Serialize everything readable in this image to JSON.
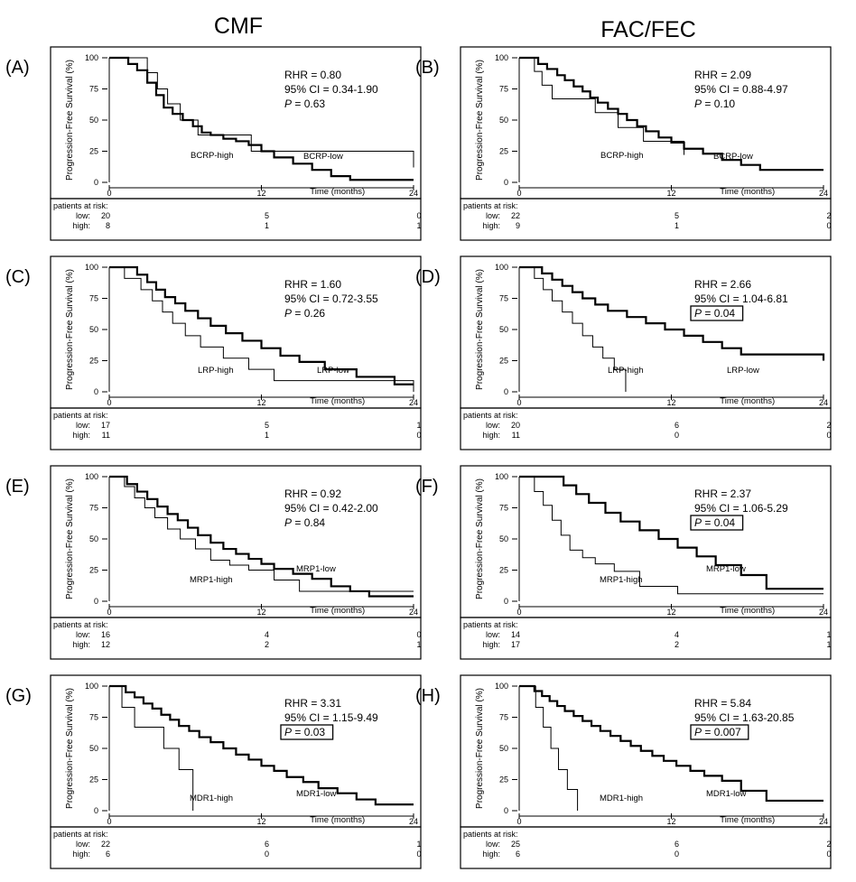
{
  "columns": [
    "CMF",
    "FAC/FEC"
  ],
  "axis": {
    "ylabel": "Progression-Free Survival (%)",
    "xlabel": "Time (months)",
    "y_ticks": [
      "100",
      "75",
      "50",
      "25",
      "0"
    ],
    "x_ticks": [
      "0",
      "12",
      "24"
    ]
  },
  "risk_header": "patients at risk:",
  "risk_low_label": "low:",
  "risk_high_label": "high:",
  "colors": {
    "line": "#000000",
    "background": "#ffffff"
  },
  "chart_data": [
    {
      "type": "line",
      "panel": "(A)",
      "column": "CMF",
      "xlim": [
        0,
        24
      ],
      "ylim": [
        0,
        100
      ],
      "grid": false,
      "stats": {
        "rhr": "RHR = 0.80",
        "ci": "95% CI = 0.34-1.90",
        "p": "P = 0.63",
        "p_boxed": false
      },
      "risk": {
        "low": [
          "20",
          "5",
          "0"
        ],
        "high": [
          "8",
          "1",
          "1"
        ]
      },
      "series": [
        {
          "name": "BCRP-low",
          "style": "thick",
          "label": "BCRP-low",
          "x": [
            0,
            1.5,
            2.2,
            3,
            3.7,
            4.3,
            5,
            5.8,
            6.6,
            7.3,
            8,
            9,
            10,
            11,
            12,
            13,
            14.5,
            16,
            17.5,
            19,
            20.5
          ],
          "y": [
            100,
            95,
            90,
            80,
            70,
            60,
            55,
            50,
            45,
            40,
            38,
            35,
            33,
            30,
            25,
            20,
            15,
            10,
            5,
            2,
            2
          ]
        },
        {
          "name": "BCRP-high",
          "style": "thin",
          "label": "BCRP-high",
          "x": [
            0,
            3,
            3.8,
            4.6,
            5.6,
            7,
            11.2,
            24
          ],
          "y": [
            100,
            88,
            75,
            63,
            50,
            38,
            25,
            12
          ]
        }
      ]
    },
    {
      "type": "line",
      "panel": "(B)",
      "column": "FAC/FEC",
      "xlim": [
        0,
        24
      ],
      "ylim": [
        0,
        100
      ],
      "grid": false,
      "stats": {
        "rhr": "RHR = 2.09",
        "ci": "95% CI = 0.88-4.97",
        "p": "P = 0.10",
        "p_boxed": false
      },
      "risk": {
        "low": [
          "22",
          "5",
          "2"
        ],
        "high": [
          "9",
          "1",
          "0"
        ]
      },
      "series": [
        {
          "name": "BCRP-low",
          "style": "thick",
          "label": "BCRP-low",
          "x": [
            0,
            1.5,
            2.2,
            3,
            3.6,
            4.3,
            5,
            5.6,
            6.2,
            7,
            7.8,
            8.5,
            9.3,
            10,
            11,
            12,
            13,
            14.5,
            16,
            17.5,
            19,
            24
          ],
          "y": [
            100,
            95,
            91,
            86,
            82,
            77,
            73,
            68,
            64,
            59,
            55,
            50,
            45,
            41,
            36,
            32,
            27,
            23,
            18,
            14,
            10,
            10
          ]
        },
        {
          "name": "BCRP-high",
          "style": "thin",
          "label": "BCRP-high",
          "x": [
            0,
            1.2,
            1.8,
            2.6,
            6,
            7.8,
            9.8,
            13
          ],
          "y": [
            100,
            89,
            78,
            67,
            56,
            44,
            33,
            22
          ]
        }
      ]
    },
    {
      "type": "line",
      "panel": "(C)",
      "column": "CMF",
      "xlim": [
        0,
        24
      ],
      "ylim": [
        0,
        100
      ],
      "grid": false,
      "stats": {
        "rhr": "RHR = 1.60",
        "ci": "95% CI = 0.72-3.55",
        "p": "P = 0.26",
        "p_boxed": false
      },
      "risk": {
        "low": [
          "17",
          "5",
          "1"
        ],
        "high": [
          "11",
          "1",
          "0"
        ]
      },
      "series": [
        {
          "name": "LRP-low",
          "style": "thick",
          "label": "LRP-low",
          "x": [
            0,
            2.2,
            3,
            3.7,
            4.4,
            5.2,
            6,
            7,
            8,
            9.2,
            10.5,
            12,
            13.5,
            15,
            17,
            19.5,
            22.5
          ],
          "y": [
            100,
            94,
            88,
            82,
            76,
            71,
            65,
            59,
            53,
            47,
            41,
            35,
            29,
            24,
            18,
            12,
            6
          ]
        },
        {
          "name": "LRP-high",
          "style": "thin",
          "label": "LRP-high",
          "x": [
            0,
            1.2,
            2.5,
            3.4,
            4.2,
            5,
            6,
            7.2,
            9,
            11,
            13,
            14.5,
            24
          ],
          "y": [
            100,
            91,
            82,
            73,
            64,
            55,
            45,
            36,
            27,
            18,
            9,
            9,
            0
          ]
        }
      ]
    },
    {
      "type": "line",
      "panel": "(D)",
      "column": "FAC/FEC",
      "xlim": [
        0,
        24
      ],
      "ylim": [
        0,
        100
      ],
      "grid": false,
      "stats": {
        "rhr": "RHR = 2.66",
        "ci": "95% CI = 1.04-6.81",
        "p": "P = 0.04",
        "p_boxed": true
      },
      "risk": {
        "low": [
          "20",
          "6",
          "2"
        ],
        "high": [
          "11",
          "0",
          "0"
        ]
      },
      "series": [
        {
          "name": "LRP-low",
          "style": "thick",
          "label": "LRP-low",
          "x": [
            0,
            1.8,
            2.6,
            3.4,
            4.2,
            5,
            6,
            7,
            8.5,
            10,
            11.5,
            13,
            14.5,
            16,
            17.5,
            24
          ],
          "y": [
            100,
            95,
            90,
            85,
            80,
            75,
            70,
            65,
            60,
            55,
            50,
            45,
            40,
            35,
            30,
            25
          ]
        },
        {
          "name": "LRP-high",
          "style": "thin",
          "label": "LRP-high",
          "x": [
            0,
            1.2,
            1.9,
            2.6,
            3.4,
            4.2,
            5,
            5.8,
            6.6,
            7.5,
            8.4
          ],
          "y": [
            100,
            91,
            82,
            73,
            64,
            55,
            45,
            36,
            27,
            18,
            0
          ]
        }
      ]
    },
    {
      "type": "line",
      "panel": "(E)",
      "column": "CMF",
      "xlim": [
        0,
        24
      ],
      "ylim": [
        0,
        100
      ],
      "grid": false,
      "stats": {
        "rhr": "RHR = 0.92",
        "ci": "95% CI = 0.42-2.00",
        "p": "P = 0.84",
        "p_boxed": false
      },
      "risk": {
        "low": [
          "16",
          "4",
          "0"
        ],
        "high": [
          "12",
          "2",
          "1"
        ]
      },
      "series": [
        {
          "name": "MRP1-low",
          "style": "thick",
          "label": "MRP1-low",
          "x": [
            0,
            1.4,
            2.2,
            3,
            3.8,
            4.6,
            5.4,
            6.2,
            7,
            8,
            9,
            10,
            11,
            12,
            13,
            14.5,
            16,
            17.5,
            19,
            20.5
          ],
          "y": [
            100,
            94,
            88,
            82,
            76,
            70,
            65,
            59,
            53,
            47,
            42,
            38,
            34,
            30,
            26,
            22,
            18,
            12,
            8,
            4
          ]
        },
        {
          "name": "MRP1-high",
          "style": "thin",
          "label": "MRP1-high",
          "x": [
            0,
            1.2,
            2,
            2.8,
            3.6,
            4.6,
            5.6,
            6.8,
            8,
            9.5,
            11,
            13,
            15,
            24
          ],
          "y": [
            100,
            92,
            83,
            75,
            67,
            58,
            50,
            42,
            33,
            29,
            25,
            17,
            8,
            8
          ]
        }
      ]
    },
    {
      "type": "line",
      "panel": "(F)",
      "column": "FAC/FEC",
      "xlim": [
        0,
        24
      ],
      "ylim": [
        0,
        100
      ],
      "grid": false,
      "stats": {
        "rhr": "RHR = 2.37",
        "ci": "95% CI = 1.06-5.29",
        "p": "P = 0.04",
        "p_boxed": true
      },
      "risk": {
        "low": [
          "14",
          "4",
          "1"
        ],
        "high": [
          "17",
          "2",
          "1"
        ]
      },
      "series": [
        {
          "name": "MRP1-low",
          "style": "thick",
          "label": "MRP1-low",
          "x": [
            0,
            3.5,
            4.5,
            5.5,
            6.8,
            8,
            9.5,
            11,
            12.5,
            14,
            15.5,
            17.5,
            19.5,
            24
          ],
          "y": [
            100,
            93,
            86,
            79,
            71,
            64,
            57,
            50,
            43,
            36,
            29,
            21,
            10,
            10
          ]
        },
        {
          "name": "MRP1-high",
          "style": "thin",
          "label": "MRP1-high",
          "x": [
            0,
            1.2,
            1.9,
            2.6,
            3.3,
            4,
            5,
            6,
            7.5,
            9.5,
            12.5,
            24
          ],
          "y": [
            100,
            88,
            77,
            65,
            53,
            41,
            35,
            30,
            24,
            12,
            6,
            6
          ]
        }
      ]
    },
    {
      "type": "line",
      "panel": "(G)",
      "column": "CMF",
      "xlim": [
        0,
        24
      ],
      "ylim": [
        0,
        100
      ],
      "grid": false,
      "stats": {
        "rhr": "RHR = 3.31",
        "ci": "95% CI = 1.15-9.49",
        "p": "P = 0.03",
        "p_boxed": true
      },
      "risk": {
        "low": [
          "22",
          "6",
          "1"
        ],
        "high": [
          "6",
          "0",
          "0"
        ]
      },
      "series": [
        {
          "name": "MDR1-low",
          "style": "thick",
          "label": "MDR1-low",
          "x": [
            0,
            1.3,
            2,
            2.7,
            3.4,
            4.1,
            4.8,
            5.5,
            6.3,
            7.1,
            8,
            9,
            10,
            11,
            12,
            13,
            14,
            15.3,
            16.5,
            18,
            19.5,
            21,
            24
          ],
          "y": [
            100,
            95,
            91,
            86,
            82,
            77,
            73,
            68,
            64,
            59,
            55,
            50,
            45,
            41,
            36,
            32,
            27,
            23,
            18,
            14,
            9,
            5,
            5
          ]
        },
        {
          "name": "MDR1-high",
          "style": "thin",
          "label": "MDR1-high",
          "x": [
            0,
            1,
            2,
            4.3,
            5.5,
            6.6
          ],
          "y": [
            100,
            83,
            67,
            50,
            33,
            0
          ]
        }
      ]
    },
    {
      "type": "line",
      "panel": "(H)",
      "column": "FAC/FEC",
      "xlim": [
        0,
        24
      ],
      "ylim": [
        0,
        100
      ],
      "grid": false,
      "stats": {
        "rhr": "RHR = 5.84",
        "ci": "95% CI = 1.63-20.85",
        "p": "P = 0.007",
        "p_boxed": true
      },
      "risk": {
        "low": [
          "25",
          "6",
          "2"
        ],
        "high": [
          "6",
          "0",
          "0"
        ]
      },
      "series": [
        {
          "name": "MDR1-low",
          "style": "thick",
          "label": "MDR1-low",
          "x": [
            0,
            1.2,
            1.8,
            2.4,
            3,
            3.6,
            4.3,
            5,
            5.7,
            6.4,
            7.2,
            8,
            8.8,
            9.6,
            10.5,
            11.4,
            12.4,
            13.5,
            14.6,
            16,
            17.5,
            19.5,
            24
          ],
          "y": [
            100,
            96,
            92,
            88,
            84,
            80,
            76,
            72,
            68,
            64,
            60,
            56,
            52,
            48,
            44,
            40,
            36,
            32,
            28,
            24,
            16,
            8,
            8
          ]
        },
        {
          "name": "MDR1-high",
          "style": "thin",
          "label": "MDR1-high",
          "x": [
            0,
            1.3,
            1.9,
            2.5,
            3.1,
            3.8,
            4.6
          ],
          "y": [
            100,
            83,
            67,
            50,
            33,
            17,
            0
          ]
        }
      ]
    }
  ]
}
